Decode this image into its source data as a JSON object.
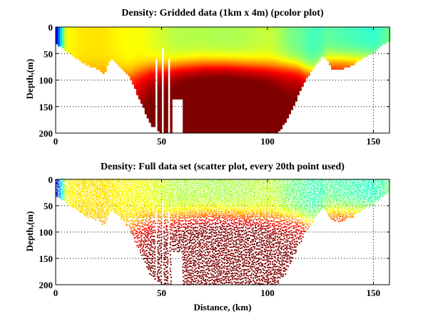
{
  "chart_data": [
    {
      "type": "heatmap",
      "title": "Density: Gridded data (1km x 4m) (pcolor plot)",
      "xlabel": "",
      "ylabel": "Depth,(m)",
      "xlim": [
        0,
        157.6
      ],
      "ylim": [
        200,
        0
      ],
      "xticks": [
        "0",
        "50",
        "100",
        "150"
      ],
      "yticks": [
        "0",
        "50",
        "100",
        "150",
        "200"
      ],
      "grid": true,
      "colormap": "jet",
      "cell_size_km": 1,
      "cell_size_m": 4
    },
    {
      "type": "scatter",
      "title": "Density: Full data set (scatter plot, every 20th point used)",
      "xlabel": "Distance, (km)",
      "ylabel": "Depth,(m)",
      "xlim": [
        0,
        157.6
      ],
      "ylim": [
        200,
        0
      ],
      "xticks": [
        "0",
        "50",
        "100",
        "150"
      ],
      "yticks": [
        "0",
        "50",
        "100",
        "150",
        "200"
      ],
      "grid": true,
      "colormap": "jet",
      "subsample": 20
    }
  ],
  "field": {
    "distance_km": [
      0,
      5,
      10,
      15,
      20,
      23,
      26,
      30,
      35,
      40,
      45,
      50,
      55,
      60,
      70,
      80,
      90,
      100,
      105,
      110,
      115,
      118,
      122,
      126,
      128,
      131,
      135,
      140,
      145,
      150,
      155,
      158
    ],
    "bottom_depth_m": [
      30,
      45,
      60,
      72,
      80,
      88,
      58,
      72,
      95,
      140,
      185,
      200,
      200,
      200,
      200,
      200,
      200,
      200,
      200,
      170,
      125,
      100,
      75,
      55,
      62,
      82,
      80,
      72,
      58,
      48,
      32,
      25
    ],
    "surface_value": [
      0.05,
      0.62,
      0.64,
      0.65,
      0.65,
      0.65,
      0.64,
      0.63,
      0.62,
      0.62,
      0.6,
      0.58,
      0.56,
      0.55,
      0.55,
      0.54,
      0.55,
      0.57,
      0.55,
      0.5,
      0.48,
      0.46,
      0.44,
      0.45,
      0.47,
      0.46,
      0.45,
      0.44,
      0.43,
      0.42,
      0.45,
      0.5
    ],
    "pycnocline_depth_m": [
      80,
      80,
      80,
      80,
      80,
      80,
      80,
      80,
      85,
      80,
      75,
      75,
      72,
      70,
      68,
      68,
      70,
      72,
      72,
      72,
      75,
      80,
      80,
      70,
      60,
      60,
      60,
      60,
      60,
      60,
      60,
      60
    ],
    "deep_value": [
      0.72,
      0.72,
      0.73,
      0.74,
      0.74,
      0.74,
      0.74,
      0.75,
      0.8,
      0.86,
      0.9,
      0.92,
      0.93,
      0.95,
      0.97,
      0.98,
      0.97,
      0.95,
      0.92,
      0.9,
      0.9,
      0.88,
      0.82,
      0.8,
      0.8,
      0.82,
      0.82,
      0.8,
      0.76,
      0.74,
      0.72,
      0.7
    ],
    "gaps": [
      [
        47,
        48,
        60,
        200
      ],
      [
        50,
        51,
        40,
        200
      ],
      [
        53,
        54,
        60,
        200
      ],
      [
        55,
        60,
        138,
        200
      ]
    ]
  }
}
